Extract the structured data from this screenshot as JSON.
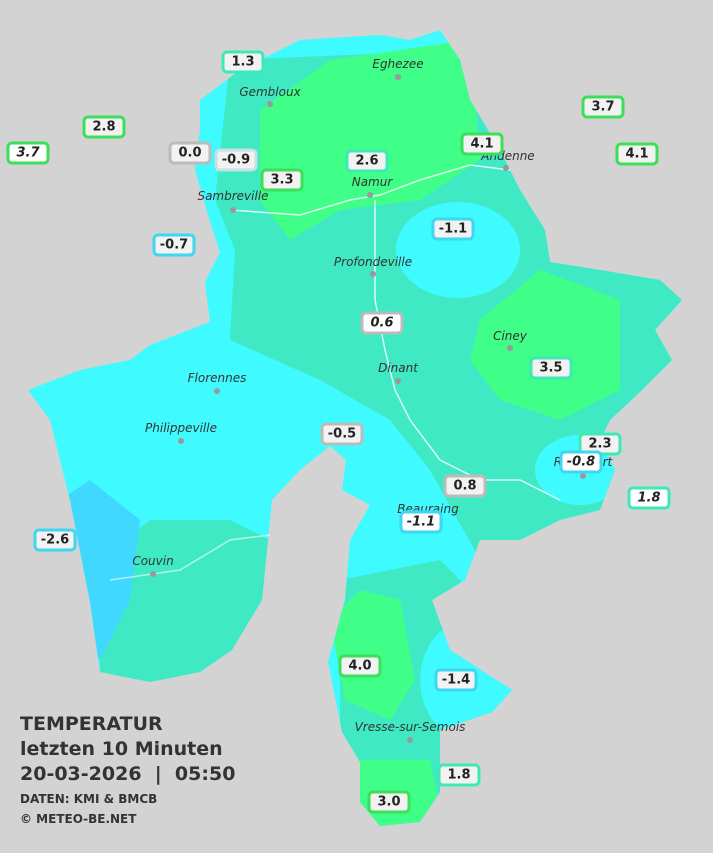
{
  "legend_block": {
    "title": "TEMPERATUR",
    "period": "letzten 10 Minuten",
    "datetime": "20-03-2026  |  05:50",
    "source": "DATEN: KMI & BMCB",
    "copyright": "© METEO-BE.NET"
  },
  "cities": [
    "Eghezee",
    "Gembloux",
    "Andenne",
    "Namur",
    "Sambreville",
    "Profondeville",
    "Ciney",
    "Dinant",
    "Florennes",
    "Philippeville",
    "Rochefort",
    "Beauraing",
    "Couvin",
    "Vresse-sur-Semois"
  ],
  "stations": [
    "1.3",
    "2.8",
    "3.7",
    "0.0",
    "-0.9",
    "2.6",
    "3.3",
    "4.1",
    "3.7",
    "4.1",
    "-0.7",
    "-1.1",
    "0.6",
    "3.5",
    "-0.5",
    "2.3",
    "-0.8",
    "1.8",
    "0.8",
    "-1.1",
    "-2.6",
    "4.0",
    "-1.4",
    "1.8",
    "3.0"
  ]
}
